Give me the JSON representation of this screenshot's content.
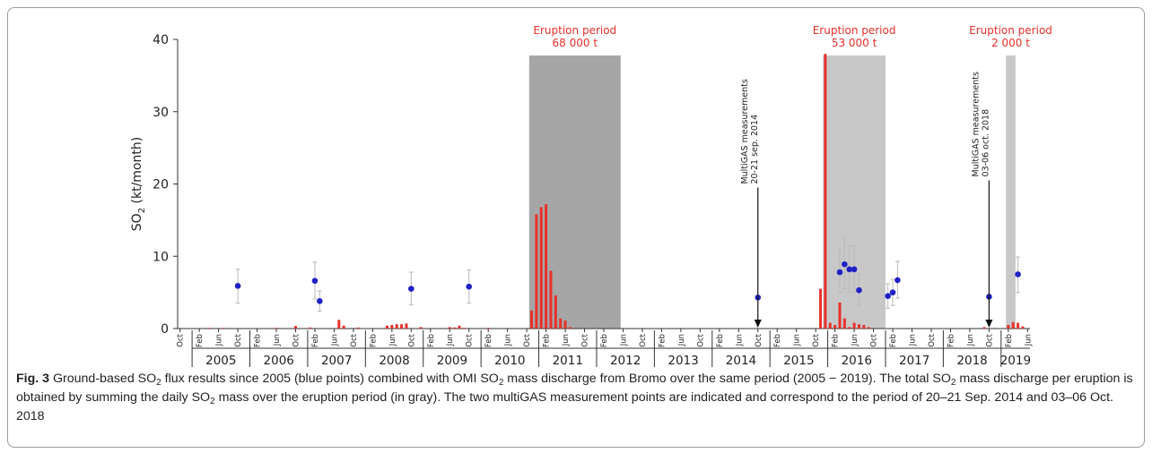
{
  "chart_data": {
    "type": "bar",
    "ylabel": "SO",
    "ylabel_sub": "2",
    "ylabel_unit": " (kt/month)",
    "ylim": [
      0,
      40
    ],
    "yticks": [
      0,
      10,
      20,
      30,
      40
    ],
    "x_start": "2004-10",
    "x_end": "2019-07",
    "month_ticks": [
      "Oct",
      "Feb",
      "Jun",
      "Oct",
      "Feb",
      "Jun",
      "Oct",
      "Feb",
      "Jun",
      "Oct",
      "Feb",
      "Jun",
      "Oct",
      "Feb",
      "Jun",
      "Oct",
      "Feb",
      "Jun",
      "Oct",
      "Feb",
      "Jun",
      "Oct",
      "Feb",
      "Jun",
      "Oct",
      "Feb",
      "Jun",
      "Oct",
      "Feb",
      "Jun",
      "Oct",
      "Feb",
      "Jun",
      "Oct",
      "Feb",
      "Jun",
      "Oct",
      "Feb",
      "Jun",
      "Oct",
      "Feb",
      "Jun",
      "Oct",
      "Feb",
      "Jun"
    ],
    "years": [
      "2005",
      "2006",
      "2007",
      "2008",
      "2009",
      "2010",
      "2011",
      "2012",
      "2013",
      "2014",
      "2015",
      "2016",
      "2017",
      "2018",
      "2019"
    ],
    "eruption_periods": [
      {
        "label": "Eruption period",
        "mass": "68 000 t",
        "start": "2010-11",
        "end": "2012-06",
        "shade": "#a6a6a6"
      },
      {
        "label": "Eruption period",
        "mass": "53 000 t",
        "start": "2015-12",
        "end": "2017-01",
        "shade": "#c8c8c8"
      },
      {
        "label": "Eruption period",
        "mass": "2 000 t",
        "start": "2019-02",
        "end": "2019-04",
        "shade": "#c8c8c8"
      }
    ],
    "omi_bars": {
      "name": "OMI SO2 mass discharge",
      "color": "#e8302a",
      "points": [
        {
          "x": "2005-04",
          "y": 0.1
        },
        {
          "x": "2005-07",
          "y": 0.1
        },
        {
          "x": "2006-06",
          "y": 0.1
        },
        {
          "x": "2006-10",
          "y": 0.35
        },
        {
          "x": "2007-01",
          "y": 0.15
        },
        {
          "x": "2007-07",
          "y": 1.2
        },
        {
          "x": "2007-08",
          "y": 0.4
        },
        {
          "x": "2007-11",
          "y": 0.15
        },
        {
          "x": "2008-05",
          "y": 0.4
        },
        {
          "x": "2008-06",
          "y": 0.5
        },
        {
          "x": "2008-07",
          "y": 0.6
        },
        {
          "x": "2008-08",
          "y": 0.6
        },
        {
          "x": "2008-09",
          "y": 0.7
        },
        {
          "x": "2008-12",
          "y": 0.2
        },
        {
          "x": "2009-06",
          "y": 0.2
        },
        {
          "x": "2009-07",
          "y": 0.15
        },
        {
          "x": "2009-08",
          "y": 0.4
        },
        {
          "x": "2009-09",
          "y": 0.1
        },
        {
          "x": "2010-02",
          "y": 0.1
        },
        {
          "x": "2010-11",
          "y": 2.5
        },
        {
          "x": "2010-12",
          "y": 15.8
        },
        {
          "x": "2011-01",
          "y": 16.8
        },
        {
          "x": "2011-02",
          "y": 17.2
        },
        {
          "x": "2011-03",
          "y": 8.0
        },
        {
          "x": "2011-04",
          "y": 4.6
        },
        {
          "x": "2011-05",
          "y": 1.4
        },
        {
          "x": "2011-06",
          "y": 1.1
        },
        {
          "x": "2011-07",
          "y": 0.2
        },
        {
          "x": "2015-11",
          "y": 5.5
        },
        {
          "x": "2015-12",
          "y": 38.0
        },
        {
          "x": "2016-01",
          "y": 0.8
        },
        {
          "x": "2016-02",
          "y": 0.5
        },
        {
          "x": "2016-03",
          "y": 3.6
        },
        {
          "x": "2016-04",
          "y": 1.4
        },
        {
          "x": "2016-05",
          "y": 0.2
        },
        {
          "x": "2016-06",
          "y": 0.8
        },
        {
          "x": "2016-07",
          "y": 0.6
        },
        {
          "x": "2016-08",
          "y": 0.5
        },
        {
          "x": "2016-09",
          "y": 0.2
        },
        {
          "x": "2018-09",
          "y": 0.2
        },
        {
          "x": "2019-02",
          "y": 0.5
        },
        {
          "x": "2019-03",
          "y": 0.9
        },
        {
          "x": "2019-04",
          "y": 0.8
        },
        {
          "x": "2019-05",
          "y": 0.3
        }
      ]
    },
    "ground_points": {
      "name": "Ground-based SO2 flux",
      "color": "#2020c8",
      "points": [
        {
          "x": "2005-10",
          "y": 5.9,
          "lo": 3.5,
          "hi": 8.2
        },
        {
          "x": "2007-02",
          "y": 6.6,
          "lo": 4.1,
          "hi": 9.2
        },
        {
          "x": "2007-03",
          "y": 3.8,
          "lo": 2.4,
          "hi": 5.2
        },
        {
          "x": "2008-10",
          "y": 5.5,
          "lo": 3.3,
          "hi": 7.8
        },
        {
          "x": "2009-10",
          "y": 5.8,
          "lo": 3.5,
          "hi": 8.1
        },
        {
          "x": "2014-10",
          "y": 4.3,
          "lo": 4.3,
          "hi": 4.3
        },
        {
          "x": "2016-03",
          "y": 7.8,
          "lo": 5.0,
          "hi": 11.0
        },
        {
          "x": "2016-04",
          "y": 8.9,
          "lo": 5.5,
          "hi": 12.5
        },
        {
          "x": "2016-05",
          "y": 8.2,
          "lo": 5.1,
          "hi": 11.5
        },
        {
          "x": "2016-06",
          "y": 8.2,
          "lo": 5.0,
          "hi": 11.4
        },
        {
          "x": "2016-07",
          "y": 5.3,
          "lo": 3.2,
          "hi": 7.5
        },
        {
          "x": "2017-01",
          "y": 4.5,
          "lo": 2.8,
          "hi": 6.2
        },
        {
          "x": "2017-02",
          "y": 5.0,
          "lo": 3.2,
          "hi": 6.8
        },
        {
          "x": "2017-03",
          "y": 6.7,
          "lo": 4.2,
          "hi": 9.3
        },
        {
          "x": "2018-10",
          "y": 4.4,
          "lo": 4.4,
          "hi": 4.4
        },
        {
          "x": "2019-04",
          "y": 7.5,
          "lo": 5.0,
          "hi": 9.9
        }
      ]
    },
    "annotations": [
      {
        "x": "2014-10",
        "line1": "MultiGAS measurements",
        "line2": "20-21 sep. 2014",
        "y_arrow_top": 19.5
      },
      {
        "x": "2018-10",
        "line1": "MultiGAS measurements",
        "line2": "03-06 oct. 2018",
        "y_arrow_top": 20.5
      }
    ]
  },
  "caption": {
    "label": "Fig. 3",
    "parts": [
      {
        "t": "  Ground-based SO"
      },
      {
        "sub": "2"
      },
      {
        "t": " flux results since 2005 (blue points) combined with OMI SO"
      },
      {
        "sub": "2"
      },
      {
        "t": " mass discharge from Bromo over the same period (2005 − 2019). The total SO"
      },
      {
        "sub": "2"
      },
      {
        "t": " mass discharge per eruption is obtained by summing the daily SO"
      },
      {
        "sub": "2"
      },
      {
        "t": " mass over the eruption period (in gray). The two multiGAS measurement points are indicated and correspond to the period of 20–21 Sep. 2014 and 03–06 Oct. 2018"
      }
    ]
  }
}
